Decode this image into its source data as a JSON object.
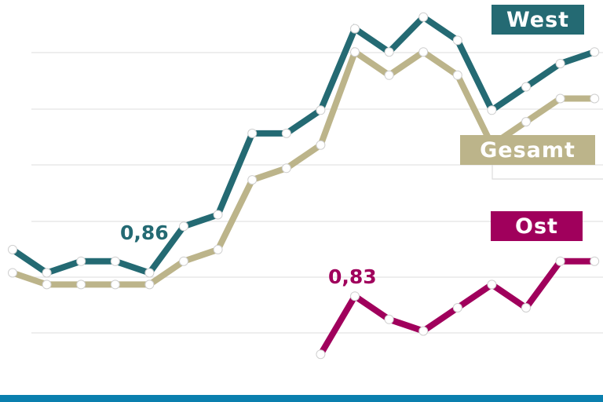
{
  "chart_data": {
    "type": "line",
    "x": [
      1,
      2,
      3,
      4,
      5,
      6,
      7,
      8,
      9,
      10,
      11,
      12,
      13,
      14,
      15,
      16,
      17,
      18
    ],
    "series": [
      {
        "name": "West",
        "color": "#246a73",
        "values": [
          0.87,
          0.85,
          0.86,
          0.86,
          0.85,
          0.89,
          0.9,
          0.97,
          0.97,
          0.99,
          1.06,
          1.04,
          1.07,
          1.05,
          0.99,
          1.01,
          1.03,
          1.04
        ]
      },
      {
        "name": "Gesamt",
        "color": "#bcb48a",
        "values": [
          0.85,
          0.84,
          0.84,
          0.84,
          0.84,
          0.86,
          0.87,
          0.93,
          0.94,
          0.96,
          1.04,
          1.02,
          1.04,
          1.02,
          0.96,
          0.98,
          1.0,
          1.0
        ]
      },
      {
        "name": "Ost",
        "color": "#a0005c",
        "values": [
          null,
          null,
          null,
          null,
          null,
          null,
          null,
          null,
          null,
          0.78,
          0.83,
          0.81,
          0.8,
          0.82,
          0.84,
          0.82,
          0.86,
          0.86
        ]
      }
    ],
    "ylim": [
      0.77,
      1.08
    ],
    "grid": true,
    "annotations": [
      {
        "text": "0,86",
        "series": "West"
      },
      {
        "text": "0,83",
        "series": "Ost"
      }
    ]
  },
  "legend": {
    "west": "West",
    "gesamt": "Gesamt",
    "ost": "Ost"
  },
  "colors": {
    "bottom_bar": "#0a7fae",
    "grid": "#e3e3e3",
    "gesamt_box_frame": "#dcdcdc"
  }
}
